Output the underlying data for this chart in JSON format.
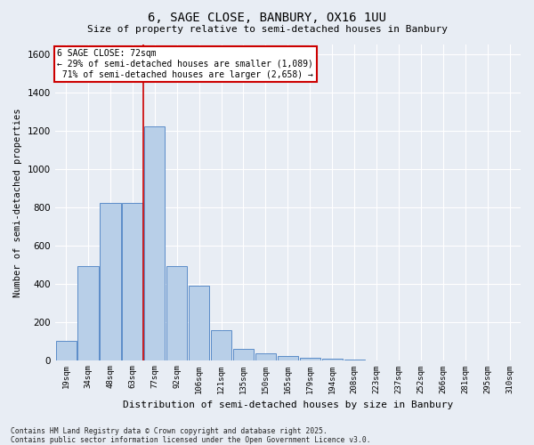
{
  "title": "6, SAGE CLOSE, BANBURY, OX16 1UU",
  "subtitle": "Size of property relative to semi-detached houses in Banbury",
  "xlabel": "Distribution of semi-detached houses by size in Banbury",
  "ylabel": "Number of semi-detached properties",
  "categories": [
    "19sqm",
    "34sqm",
    "48sqm",
    "63sqm",
    "77sqm",
    "92sqm",
    "106sqm",
    "121sqm",
    "135sqm",
    "150sqm",
    "165sqm",
    "179sqm",
    "194sqm",
    "208sqm",
    "223sqm",
    "237sqm",
    "252sqm",
    "266sqm",
    "281sqm",
    "295sqm",
    "310sqm"
  ],
  "values": [
    100,
    490,
    820,
    820,
    1220,
    490,
    390,
    155,
    60,
    35,
    20,
    10,
    5,
    2,
    0,
    0,
    0,
    0,
    0,
    0,
    0
  ],
  "bar_color": "#b8cfe8",
  "bar_edge_color": "#5b8cc8",
  "background_color": "#e8edf4",
  "grid_color": "#ffffff",
  "ylim": [
    0,
    1650
  ],
  "yticks": [
    0,
    200,
    400,
    600,
    800,
    1000,
    1200,
    1400,
    1600
  ],
  "property_label": "6 SAGE CLOSE: 72sqm",
  "pct_smaller": 29,
  "pct_larger": 71,
  "count_smaller": 1089,
  "count_larger": 2658,
  "vline_position": 3.5,
  "annotation_box_color": "#ffffff",
  "annotation_box_edge": "#cc0000",
  "footnote": "Contains HM Land Registry data © Crown copyright and database right 2025.\nContains public sector information licensed under the Open Government Licence v3.0."
}
